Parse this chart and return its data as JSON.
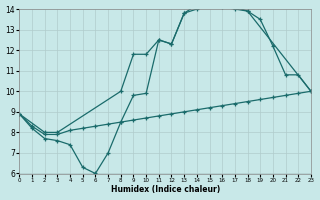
{
  "xlabel": "Humidex (Indice chaleur)",
  "bg_color": "#c8e8e8",
  "grid_color": "#b0cccc",
  "line_color": "#1a6b6b",
  "xlim": [
    0,
    23
  ],
  "ylim": [
    6,
    14
  ],
  "xtick_vals": [
    0,
    1,
    2,
    3,
    4,
    5,
    6,
    7,
    8,
    9,
    10,
    11,
    12,
    13,
    14,
    15,
    16,
    17,
    18,
    19,
    20,
    21,
    22,
    23
  ],
  "ytick_vals": [
    6,
    7,
    8,
    9,
    10,
    11,
    12,
    13,
    14
  ],
  "line1": {
    "x": [
      0,
      1,
      2,
      3,
      4,
      5,
      6,
      7,
      8,
      9,
      10,
      11,
      12,
      13,
      14,
      15,
      16,
      17,
      18,
      23
    ],
    "y": [
      8.9,
      8.2,
      7.7,
      7.6,
      7.4,
      6.3,
      6.0,
      7.0,
      8.5,
      9.8,
      9.9,
      12.5,
      12.3,
      13.8,
      14.2,
      14.3,
      14.3,
      14.1,
      13.9,
      10.0
    ]
  },
  "line2": {
    "x": [
      0,
      1,
      2,
      3,
      4,
      5,
      6,
      7,
      8,
      9,
      10,
      11,
      12,
      13,
      14,
      15,
      16,
      17,
      18,
      19,
      20,
      21,
      22,
      23
    ],
    "y": [
      8.9,
      8.3,
      7.9,
      7.9,
      8.1,
      8.2,
      8.3,
      8.4,
      8.5,
      8.6,
      8.7,
      8.8,
      8.9,
      9.0,
      9.1,
      9.2,
      9.3,
      9.4,
      9.5,
      9.6,
      9.7,
      9.8,
      9.9,
      10.0
    ]
  },
  "line3": {
    "x": [
      0,
      2,
      3,
      8,
      9,
      10,
      11,
      12,
      13,
      14,
      15,
      16,
      17,
      18,
      19,
      20,
      21,
      22,
      23
    ],
    "y": [
      8.9,
      8.0,
      8.0,
      10.0,
      11.8,
      11.8,
      12.5,
      12.3,
      13.8,
      14.0,
      14.3,
      14.1,
      14.0,
      13.9,
      13.5,
      12.2,
      10.8,
      10.8,
      10.0
    ]
  }
}
